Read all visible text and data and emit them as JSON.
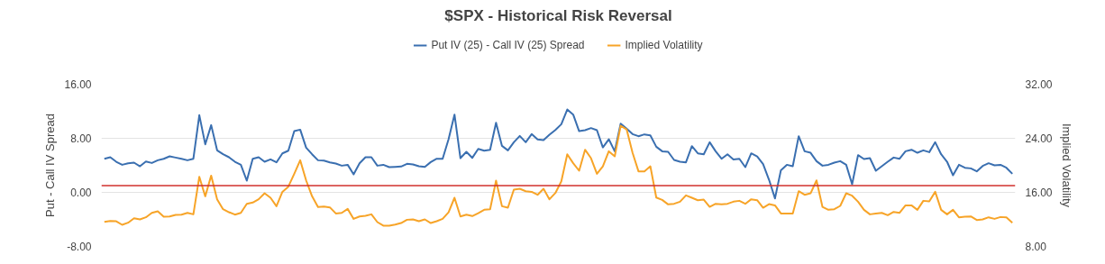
{
  "chart_data": {
    "type": "line",
    "title": "$SPX - Historical Risk Reversal",
    "ylabel": "Put - Call IV Spread",
    "y2label": "Implied Volatility",
    "categories": [
      null,
      null,
      null,
      null,
      null,
      null,
      null,
      null,
      null,
      null,
      null,
      null,
      null,
      null,
      null,
      null,
      null,
      null,
      null,
      null,
      null,
      null,
      null,
      null,
      null,
      null,
      null,
      null,
      null,
      null,
      null,
      null,
      null,
      null,
      null,
      null,
      null,
      null,
      null,
      null,
      null,
      null,
      null,
      null,
      null,
      null,
      null,
      null,
      null,
      null,
      null,
      null,
      null,
      null,
      null,
      null,
      null,
      null,
      null,
      null,
      null,
      null,
      null,
      null,
      null,
      null,
      null,
      null,
      null,
      null,
      null,
      null,
      null,
      null,
      null,
      null,
      null,
      null,
      null,
      null,
      null,
      null,
      null,
      null,
      null,
      null,
      null,
      null,
      null,
      null,
      null,
      null,
      null,
      null,
      null,
      null,
      null,
      null,
      null,
      null,
      null,
      null,
      null,
      null,
      null,
      null,
      null,
      null,
      null,
      null,
      null,
      null,
      null,
      null,
      null,
      null,
      null,
      null,
      null,
      null,
      null,
      null,
      null,
      null,
      null,
      null,
      null,
      null,
      null,
      null,
      null,
      null,
      null,
      null,
      null,
      null,
      null,
      null,
      null,
      null,
      null,
      null,
      null,
      null,
      null,
      null,
      null,
      null,
      null,
      null,
      null,
      null,
      null,
      null
    ],
    "series": [
      {
        "name": "Put IV (25) - Call IV (25) Spread",
        "color": "#3a6fb0",
        "values": [
          4.97,
          5.2,
          4.53,
          4.08,
          4.31,
          4.4,
          3.86,
          4.57,
          4.35,
          4.75,
          4.97,
          5.33,
          5.15,
          4.97,
          4.75,
          4.97,
          11.42,
          7.11,
          9.95,
          6.22,
          5.64,
          5.2,
          4.53,
          4.08,
          1.73,
          4.97,
          5.2,
          4.53,
          4.88,
          4.44,
          5.77,
          6.17,
          9.06,
          9.28,
          6.62,
          5.64,
          4.75,
          4.71,
          4.44,
          4.26,
          3.95,
          4.08,
          2.66,
          4.31,
          5.2,
          5.2,
          3.95,
          4.08,
          3.73,
          3.77,
          3.82,
          4.22,
          4.13,
          3.86,
          3.77,
          4.48,
          4.97,
          4.97,
          7.86,
          11.51,
          5.06,
          6.0,
          5.11,
          6.44,
          6.17,
          6.31,
          10.31,
          6.88,
          6.22,
          7.42,
          8.35,
          7.42,
          8.62,
          7.82,
          7.73,
          8.53,
          9.24,
          10.08,
          12.26,
          11.51,
          9.06,
          9.2,
          9.51,
          9.2,
          6.66,
          7.86,
          6.08,
          10.18,
          9.42,
          8.62,
          8.31,
          8.58,
          8.44,
          6.75,
          6.08,
          6.0,
          4.8,
          4.53,
          4.44,
          6.84,
          5.77,
          5.64,
          7.42,
          6.08,
          4.97,
          5.64,
          4.88,
          4.97,
          3.73,
          5.77,
          5.33,
          4.17,
          1.86,
          -0.89,
          3.28,
          4.08,
          3.86,
          8.31,
          6.08,
          5.86,
          4.62,
          3.95,
          4.08,
          4.4,
          4.62,
          4.08,
          1.2,
          5.51,
          4.93,
          5.06,
          3.2,
          3.86,
          4.53,
          5.15,
          4.97,
          6.08,
          6.31,
          5.86,
          6.22,
          5.95,
          7.42,
          5.64,
          4.53,
          2.53,
          4.08,
          3.64,
          3.55,
          3.11,
          3.91,
          4.31,
          4.0,
          4.08,
          3.64,
          2.75
        ]
      },
      {
        "name": "Implied Volatility",
        "color": "#f7a428",
        "axis": "y2",
        "values": [
          11.64,
          11.77,
          11.73,
          11.2,
          11.51,
          12.17,
          12.0,
          12.31,
          12.97,
          13.2,
          12.4,
          12.44,
          12.66,
          12.71,
          12.97,
          12.75,
          18.31,
          15.42,
          18.48,
          14.98,
          13.51,
          13.06,
          12.71,
          12.97,
          14.31,
          14.49,
          14.98,
          15.86,
          15.2,
          13.95,
          16.08,
          16.84,
          18.75,
          20.75,
          17.77,
          15.42,
          13.82,
          13.91,
          13.78,
          12.88,
          12.97,
          13.55,
          12.08,
          12.44,
          12.53,
          12.75,
          11.6,
          11.07,
          11.07,
          11.24,
          11.46,
          11.95,
          12.0,
          11.73,
          12.0,
          11.46,
          11.73,
          12.08,
          13.06,
          15.2,
          12.44,
          12.71,
          12.49,
          12.93,
          13.42,
          13.51,
          17.73,
          13.95,
          13.73,
          16.4,
          16.53,
          16.17,
          16.08,
          15.64,
          16.53,
          14.98,
          15.91,
          17.64,
          21.64,
          20.31,
          19.2,
          22.31,
          21.06,
          18.75,
          19.86,
          22.08,
          21.33,
          25.86,
          25.33,
          21.86,
          19.11,
          19.11,
          19.86,
          15.24,
          14.88,
          14.22,
          14.31,
          14.62,
          15.55,
          15.2,
          14.84,
          14.93,
          13.86,
          14.31,
          14.22,
          14.31,
          14.62,
          14.75,
          14.31,
          14.98,
          14.84,
          13.73,
          14.26,
          14.08,
          12.88,
          12.88,
          12.88,
          16.17,
          15.64,
          15.86,
          17.77,
          13.86,
          13.42,
          13.51,
          14.0,
          15.86,
          15.51,
          14.62,
          13.42,
          12.75,
          12.88,
          12.97,
          12.62,
          13.11,
          12.97,
          14.08,
          14.08,
          13.42,
          14.75,
          14.66,
          16.08,
          13.42,
          12.75,
          13.42,
          12.31,
          12.4,
          12.44,
          11.91,
          12.0,
          12.31,
          12.08,
          12.35,
          12.31,
          11.51
        ]
      }
    ],
    "ylim": [
      -8,
      16
    ],
    "yticks": [
      {
        "value": -8,
        "label": "-8.00"
      },
      {
        "value": 0,
        "label": "0.00"
      },
      {
        "value": 8,
        "label": "8.00"
      },
      {
        "value": 16,
        "label": "16.00"
      }
    ],
    "y2lim": [
      8,
      32
    ],
    "y2ticks": [
      {
        "value": 8,
        "label": "8.00"
      },
      {
        "value": 16,
        "label": "16.00"
      },
      {
        "value": 24,
        "label": "24.00"
      },
      {
        "value": 32,
        "label": "32.00"
      }
    ],
    "ref_lines": [
      {
        "axis": "y",
        "value": 1,
        "color": "#d0312d"
      }
    ],
    "grid": "y",
    "legend": "top",
    "marker": "none",
    "line_style": "solid"
  }
}
